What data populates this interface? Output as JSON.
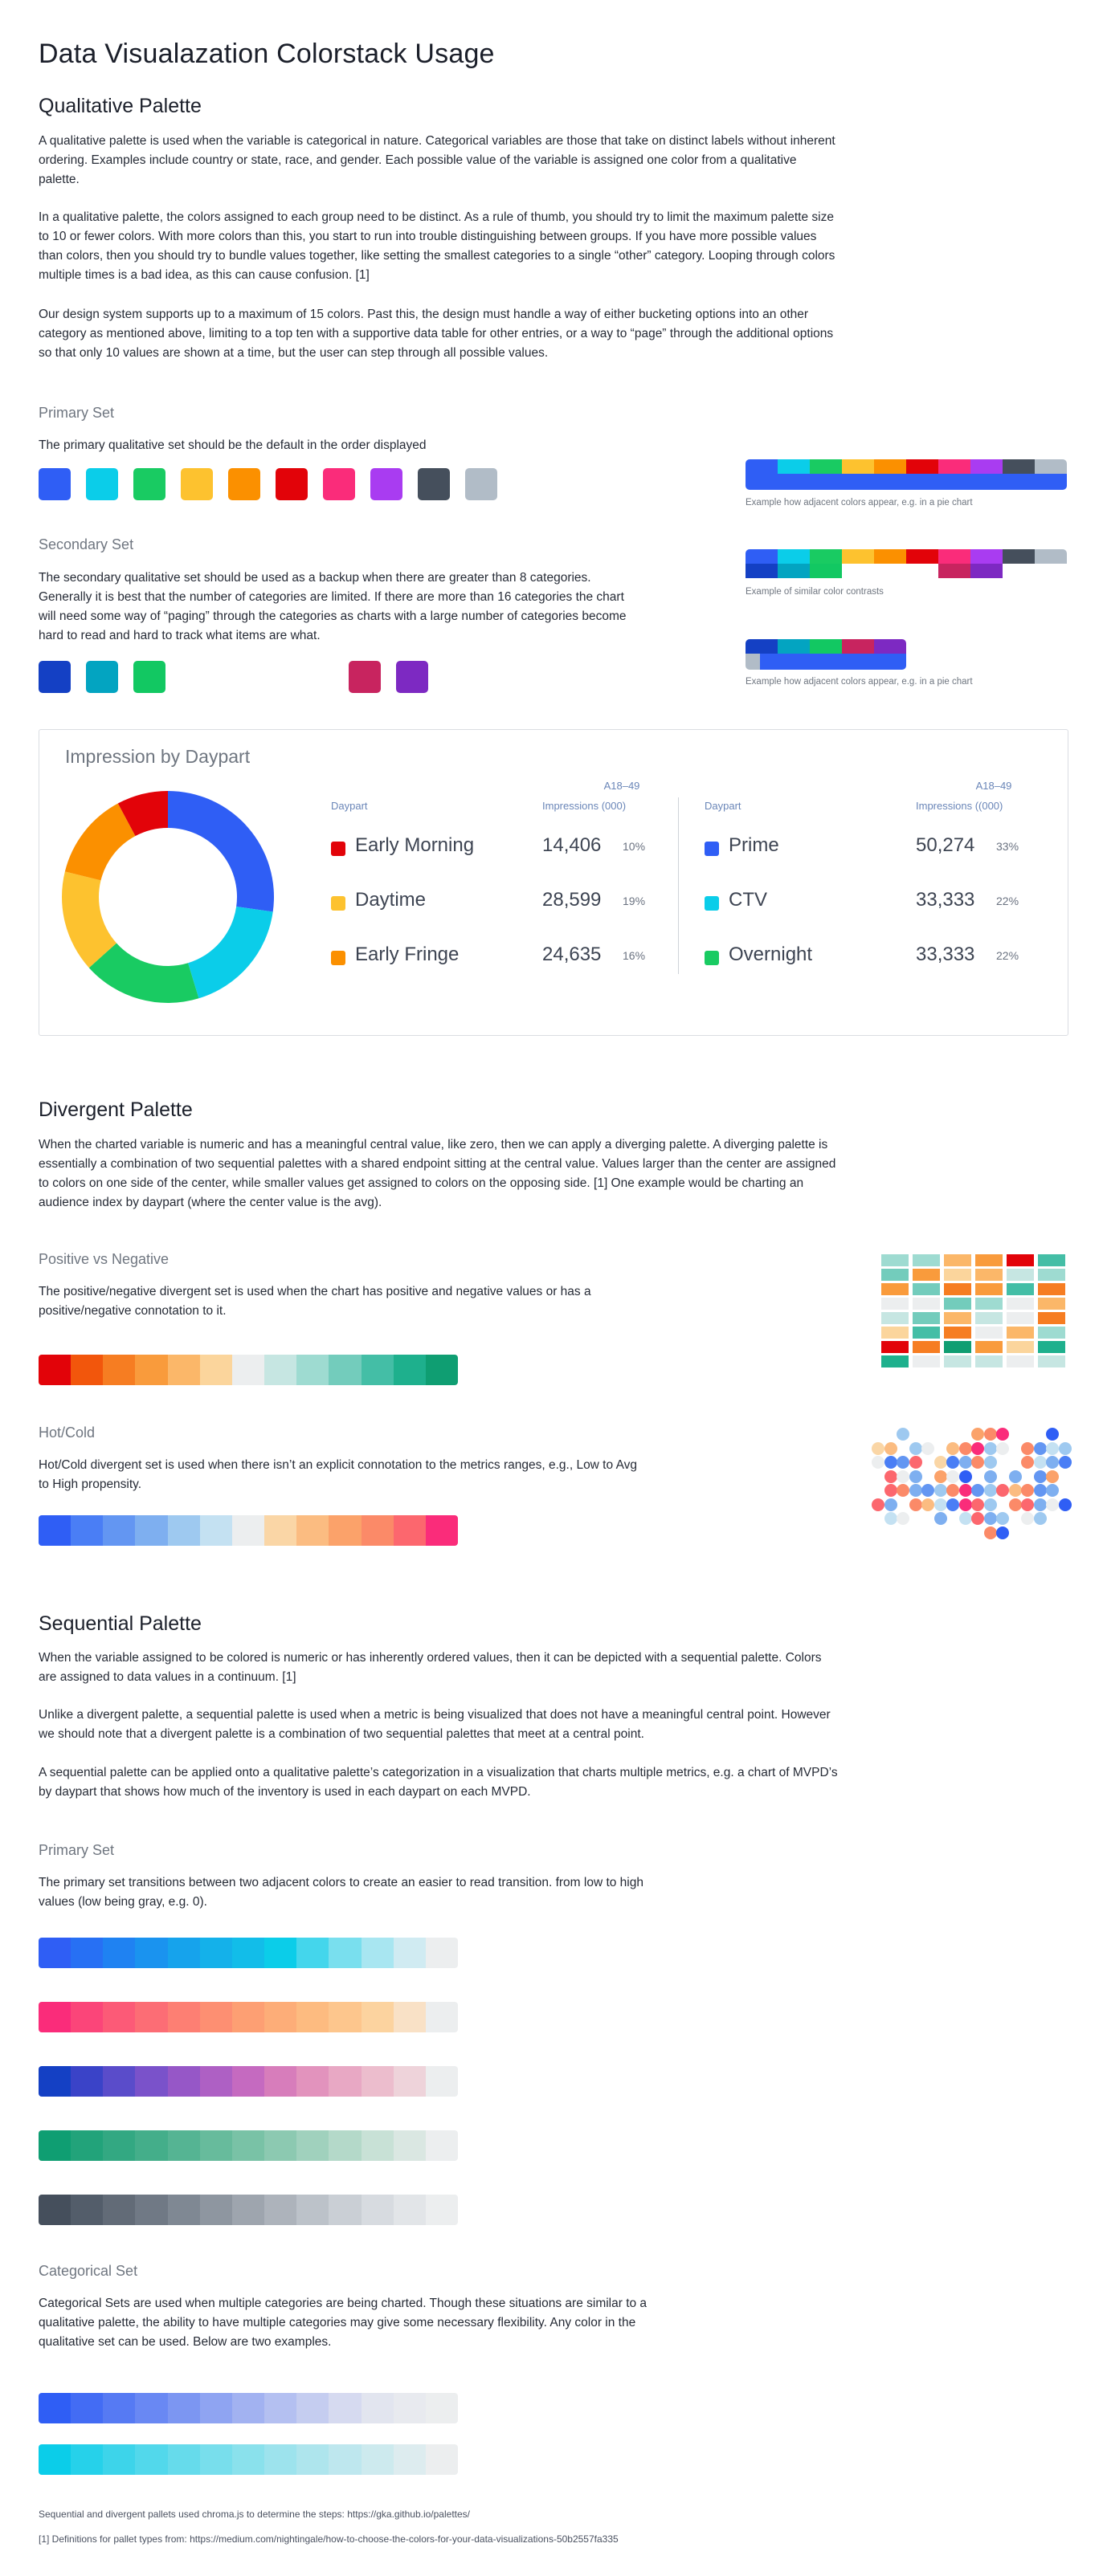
{
  "page": {
    "title": "Data Visualazation Colorstack Usage"
  },
  "qualitative": {
    "heading": "Qualitative Palette",
    "p1": "A qualitative palette is used when the variable is categorical in nature. Categorical variables are those that take on distinct labels without inherent ordering. Examples include country or state, race, and gender. Each possible value of the variable is assigned one color from a qualitative palette.",
    "p2": "In a qualitative palette, the colors assigned to each group need to be distinct. As a rule of thumb, you should try to limit the maximum palette size to 10 or fewer colors. With more colors than this, you start to run into trouble distinguishing between groups. If you have more possible values than colors, then you should try to bundle values together, like setting the smallest categories to a single “other” category. Looping through colors multiple times is a bad idea, as this can cause confusion. [1]",
    "p3": "Our design system supports up to a maximum of 15 colors. Past this, the design must handle a way of either bucketing options into an other category as mentioned above, limiting to a top ten with a supportive data table for other entries, or a way to “page” through the additional options so that only 10 values are shown at a time, but the user can step through all possible values.",
    "primary": {
      "heading": "Primary Set",
      "text": "The primary qualitative set should be the default in the order displayed",
      "colors": [
        "#2f5ef5",
        "#0bcde9",
        "#19cb62",
        "#fdc22f",
        "#fb9000",
        "#e20309",
        "#fa2c7a",
        "#a93cf1",
        "#454f5c",
        "#b1bcc7"
      ],
      "example_caption": "Example how adjacent colors appear, e.g. in a pie chart"
    },
    "secondary": {
      "heading": "Secondary Set",
      "text": "The secondary qualitative set should be used as a backup when there are greater than 8 categories. Generally it is best that the number of categories are limited. If there are more than 16 categories the chart will need some way of “paging” through the categories as charts with a large number of categories become hard to read and hard to track what items are what.",
      "colors_left": [
        "#1440c4",
        "#03a4c1",
        "#12c862"
      ],
      "colors_right": [
        "#c8245f",
        "#7d29c2"
      ],
      "example_caption_1": "Example of similar color contrasts",
      "example_caption_2": "Example how adjacent colors appear, e.g. in a pie chart"
    }
  },
  "impression_card": {
    "title": "Impression by Daypart",
    "left_table": {
      "col_daypart": "Daypart",
      "col_a18": "A18–49",
      "col_impr": "Impressions (000)",
      "rows": [
        {
          "label": "Early Morning",
          "value": "14,406",
          "pct": "10%",
          "color": "#e20309"
        },
        {
          "label": "Daytime",
          "value": "28,599",
          "pct": "19%",
          "color": "#fdc22f"
        },
        {
          "label": "Early Fringe",
          "value": "24,635",
          "pct": "16%",
          "color": "#fb9000"
        }
      ]
    },
    "right_table": {
      "col_daypart": "Daypart",
      "col_a18": "A18–49",
      "col_impr": "Impressions ((000)",
      "rows": [
        {
          "label": "Prime",
          "value": "50,274",
          "pct": "33%",
          "color": "#2f5ef5"
        },
        {
          "label": "CTV",
          "value": "33,333",
          "pct": "22%",
          "color": "#0bcde9"
        },
        {
          "label": "Overnight",
          "value": "33,333",
          "pct": "22%",
          "color": "#19cb62"
        }
      ]
    }
  },
  "chart_data": {
    "type": "pie",
    "title": "Impression by Daypart",
    "categories": [
      "Prime",
      "CTV",
      "Overnight",
      "Daytime",
      "Early Fringe",
      "Early Morning"
    ],
    "values": [
      50274,
      33333,
      33333,
      28599,
      24635,
      14406
    ],
    "colors": [
      "#2f5ef5",
      "#0bcde9",
      "#19cb62",
      "#fdc22f",
      "#fb9000",
      "#e20309"
    ],
    "donut": true
  },
  "divergent": {
    "heading": "Divergent Palette",
    "p1": "When the charted variable is numeric and has a meaningful central value, like zero, then we can apply a diverging palette. A diverging palette is essentially a combination of two sequential palettes with a shared endpoint sitting at the central value. Values larger than the center are assigned to colors on one side of the center, while smaller values get assigned to colors on the opposing side. [1] One example would be charting an audience index by daypart (where the center value is the avg).",
    "posneg": {
      "heading": "Positive vs Negative",
      "text": "The positive/negative divergent set is used when the chart has positive and negative values or has a positive/negative connotation to it.",
      "colors": [
        "#e20309",
        "#f2560c",
        "#f67d22",
        "#f99b3c",
        "#fbb769",
        "#fbd59c",
        "#eceeef",
        "#c6e6e2",
        "#9edbd1",
        "#73ccbc",
        "#44bea6",
        "#1eb08d",
        "#0f9e72"
      ]
    },
    "hotcold": {
      "heading": "Hot/Cold",
      "text": "Hot/Cold divergent set is used when there isn’t an explicit connotation to the metrics ranges, e.g., Low to Avg to High propensity.",
      "colors": [
        "#2f5ef5",
        "#4a7ef5",
        "#6396f2",
        "#7eaff0",
        "#9ec9f0",
        "#c4e1f2",
        "#eceeef",
        "#fad6a6",
        "#fbbc81",
        "#fba26a",
        "#fb8a68",
        "#fc676e",
        "#fa2c7a"
      ]
    }
  },
  "sequential": {
    "heading": "Sequential Palette",
    "p1": "When the variable assigned to be colored is numeric or has inherently ordered values, then it can be depicted with a sequential palette. Colors are assigned to data values in a continuum. [1]",
    "p2": "Unlike a divergent palette, a sequential palette is used when a metric is being visualized that does not have a meaningful central point. However we should note that a divergent palette is a combination of two sequential palettes that meet at a central point.",
    "p3": "A sequential palette can be applied onto a qualitative palette’s categorization in a visualization that charts multiple metrics, e.g. a chart of MVPD’s by daypart that shows how much of the inventory is used in each daypart on each MVPD.",
    "primary": {
      "heading": "Primary Set",
      "text": "The primary set transitions between two adjacent colors to create an easier to read transition. from low to high values (low being gray, e.g. 0).",
      "strips": [
        [
          "#2f5ef5",
          "#2770f4",
          "#1f82f2",
          "#1a93ef",
          "#16a3ec",
          "#14b1ea",
          "#12bde9",
          "#0bcde9",
          "#44d6ec",
          "#79dfee",
          "#a8e6f1",
          "#d0ebf2",
          "#eceeef"
        ],
        [
          "#fa2c7a",
          "#fb4579",
          "#fc5a77",
          "#fc6d75",
          "#fd7f73",
          "#fd8f72",
          "#fd9f73",
          "#fdad78",
          "#fdbb80",
          "#fdc68d",
          "#fcd39f",
          "#f9e1c6",
          "#eceeef"
        ],
        [
          "#1440c4",
          "#3a43c8",
          "#5a4cca",
          "#7a52ca",
          "#9657c7",
          "#ae60c4",
          "#c56ac0",
          "#d77dbb",
          "#e293bd",
          "#e8a8c4",
          "#ecbdcd",
          "#eed3da",
          "#eceeef"
        ],
        [
          "#0f9e72",
          "#22a37a",
          "#33a882",
          "#44ae8a",
          "#55b493",
          "#67bb9c",
          "#79c2a6",
          "#8cc9b1",
          "#a0d1bd",
          "#b4d9c9",
          "#c8e1d6",
          "#dae7e2",
          "#eceeef"
        ],
        [
          "#454f5c",
          "#535d6a",
          "#626b77",
          "#707985",
          "#7f8893",
          "#8e96a0",
          "#9ea5ae",
          "#adb3bb",
          "#bcc2c9",
          "#cacfd5",
          "#d7dbe0",
          "#e2e5e8",
          "#eceeef"
        ]
      ]
    },
    "categorical": {
      "heading": "Categorical Set",
      "text": "Categorical Sets are used when multiple categories are being charted. Though these situations are similar to a qualitative palette, the ability to have multiple categories may give some necessary flexibility. Any color in the qualitative set can be used. Below are two examples.",
      "strips": [
        [
          "#2f5ef5",
          "#436cf4",
          "#567af3",
          "#6988f3",
          "#7c96f2",
          "#8fa4f2",
          "#a2b2f1",
          "#b4c0f1",
          "#c5cdf0",
          "#d6daf0",
          "#e2e5ef",
          "#e8eaef",
          "#eceeef"
        ],
        [
          "#0bcde9",
          "#26d1ea",
          "#3dd4ea",
          "#52d8eb",
          "#66dbeb",
          "#78deec",
          "#8ae1ec",
          "#9de3ed",
          "#aee5ed",
          "#bee7ee",
          "#cdeaee",
          "#ddecef",
          "#eceeef"
        ]
      ]
    }
  },
  "footer": {
    "line1": "Sequential and divergent pallets used chroma.js to determine the steps: https://gka.github.io/palettes/",
    "line2": "[1] Definitions for pallet types from: https://medium.com/nightingale/how-to-choose-the-colors-for-your-data-visualizations-50b2557fa335"
  }
}
